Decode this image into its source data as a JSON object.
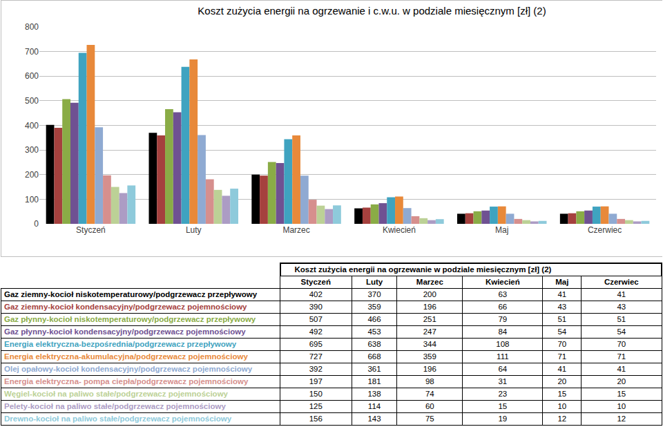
{
  "chart_data": {
    "type": "bar",
    "title": "Koszt zużycia energii na ogrzewanie i c.w.u. w podziale miesięcznym [zł] (2)",
    "categories": [
      "Styczeń",
      "Luty",
      "Marzec",
      "Kwiecień",
      "Maj",
      "Czerwiec"
    ],
    "series": [
      {
        "name": "Gaz ziemny-kocioł niskotemperaturowy/podgrzewacz przepływowy",
        "color": "#000000",
        "values": [
          402,
          370,
          200,
          63,
          41,
          41
        ]
      },
      {
        "name": "Gaz ziemny-kocioł kondensacyjny/podgrzewacz pojemnościowy",
        "color": "#a5413e",
        "values": [
          390,
          359,
          196,
          66,
          43,
          43
        ]
      },
      {
        "name": "Gaz płynny-kocioł niskotemperaturowy/podgrzewacz przepływowy",
        "color": "#8aac46",
        "values": [
          507,
          466,
          251,
          79,
          51,
          51
        ]
      },
      {
        "name": "Gaz płynny-kocioł kondensacyjny/podgrzewacz pojemnościowy",
        "color": "#6f5192",
        "values": [
          492,
          453,
          247,
          84,
          54,
          54
        ]
      },
      {
        "name": "Energia elektryczna-bezpośrednia/podgrzewacz przepływowy",
        "color": "#3fa3c0",
        "values": [
          695,
          638,
          344,
          108,
          70,
          70
        ]
      },
      {
        "name": "Energia elektryczna-akumulacyjna/podgrzewacz pojemnościowy",
        "color": "#e8893a",
        "values": [
          727,
          668,
          359,
          111,
          71,
          71
        ]
      },
      {
        "name": "Olej opałowy-kocioł kondensacyjny/podgrzewacz pojemnościowy",
        "color": "#8faad2",
        "values": [
          392,
          361,
          196,
          64,
          41,
          41
        ]
      },
      {
        "name": "Energia elektryczna- pompa ciepła/podgrzewacz pojemnościowy",
        "color": "#d68f8d",
        "values": [
          197,
          181,
          98,
          31,
          20,
          20
        ]
      },
      {
        "name": "Węgiel-kocioł na paliwo stałe/podgrzewacz pojemnościowy",
        "color": "#bcd196",
        "values": [
          150,
          138,
          74,
          23,
          15,
          15
        ]
      },
      {
        "name": "Pelety-kocioł na paliwo stałe/podgrzewacz pojemnościowy",
        "color": "#ac9cc4",
        "values": [
          125,
          114,
          60,
          15,
          10,
          10
        ]
      },
      {
        "name": "Drewno-kocioł na paliwo stałe/podgrzewacz pojemnościowy",
        "color": "#8ecadb",
        "values": [
          156,
          143,
          75,
          19,
          12,
          12
        ]
      }
    ],
    "ylim": [
      0,
      800
    ],
    "yticks": [
      0,
      100,
      200,
      300,
      400,
      500,
      600,
      700,
      800
    ],
    "grid": true
  },
  "table": {
    "title": "Koszt zużycia energii na ogrzewanie w podziale miesięcznym [zł] (2)"
  }
}
